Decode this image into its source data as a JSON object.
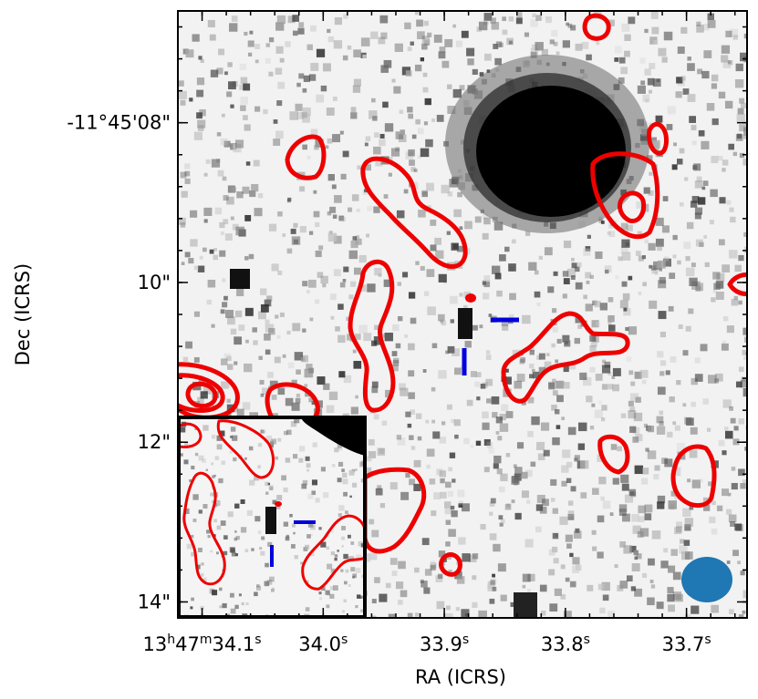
{
  "chart_data": {
    "type": "image",
    "title": "",
    "xlabel": "RA (ICRS)",
    "ylabel": "Dec (ICRS)",
    "xticks": [
      {
        "value": 34.1,
        "label_parts": [
          "13",
          "h",
          "47",
          "m",
          "34.1",
          "s"
        ]
      },
      {
        "value": 34.0,
        "label_parts": [
          "34.0",
          "s"
        ]
      },
      {
        "value": 33.9,
        "label_parts": [
          "33.9",
          "s"
        ]
      },
      {
        "value": 33.8,
        "label_parts": [
          "33.8",
          "s"
        ]
      },
      {
        "value": 33.7,
        "label_parts": [
          "33.7",
          "s"
        ]
      }
    ],
    "yticks": [
      {
        "value": 8,
        "label": "-11°45'08\""
      },
      {
        "value": 10,
        "label": "10\""
      },
      {
        "value": 12,
        "label": "12\""
      },
      {
        "value": 14,
        "label": "14\""
      }
    ],
    "xlim_seconds": [
      34.12,
      33.65
    ],
    "ylim_arcsec": [
      6.6,
      14.2
    ],
    "background": "grayscale optical image (inverted)",
    "contour_color": "#ee0000",
    "marker_color": "#0000dd",
    "beam_color": "#1f77b4",
    "has_inset": true,
    "colors": {
      "contour": "#ee0000",
      "marker": "#0000dd",
      "beam": "#1f77b4",
      "frame": "#000000"
    }
  }
}
